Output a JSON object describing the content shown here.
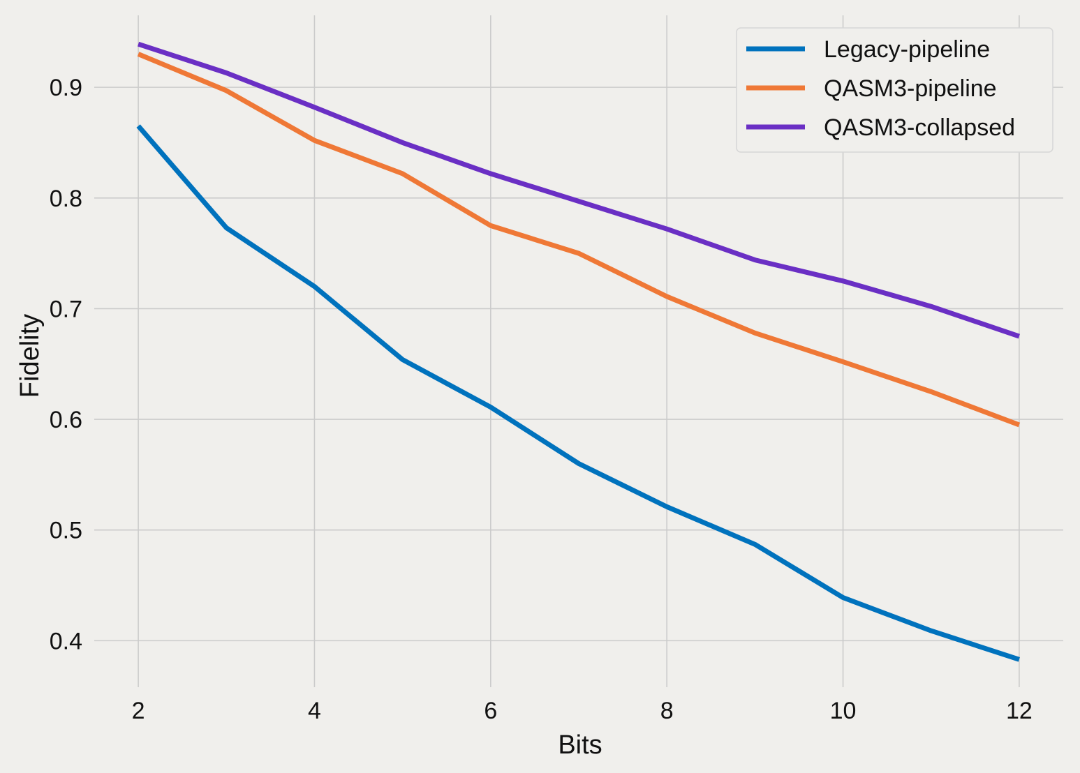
{
  "chart_data": {
    "type": "line",
    "title": "",
    "xlabel": "Bits",
    "ylabel": "Fidelity",
    "x": [
      2,
      3,
      4,
      5,
      6,
      7,
      8,
      9,
      10,
      11,
      12
    ],
    "xlim": [
      1.5,
      12.5
    ],
    "ylim": [
      0.358,
      0.965
    ],
    "xticks": [
      2,
      4,
      6,
      8,
      10,
      12
    ],
    "yticks": [
      0.4,
      0.5,
      0.6,
      0.7,
      0.8,
      0.9
    ],
    "xtick_labels": [
      "2",
      "4",
      "6",
      "8",
      "10",
      "12"
    ],
    "ytick_labels": [
      "0.4",
      "0.5",
      "0.6",
      "0.7",
      "0.8",
      "0.9"
    ],
    "grid": true,
    "legend_position": "top-right",
    "series": [
      {
        "name": "Legacy-pipeline",
        "color": "#0072bd",
        "values": [
          0.865,
          0.773,
          0.72,
          0.654,
          0.611,
          0.56,
          0.521,
          0.487,
          0.439,
          0.409,
          0.383
        ]
      },
      {
        "name": "QASM3-pipeline",
        "color": "#ef7836",
        "values": [
          0.93,
          0.897,
          0.852,
          0.822,
          0.775,
          0.75,
          0.711,
          0.678,
          0.652,
          0.625,
          0.595
        ]
      },
      {
        "name": "QASM3-collapsed",
        "color": "#6a2fc4",
        "values": [
          0.939,
          0.913,
          0.882,
          0.85,
          0.822,
          0.797,
          0.772,
          0.744,
          0.725,
          0.702,
          0.675
        ]
      }
    ]
  }
}
